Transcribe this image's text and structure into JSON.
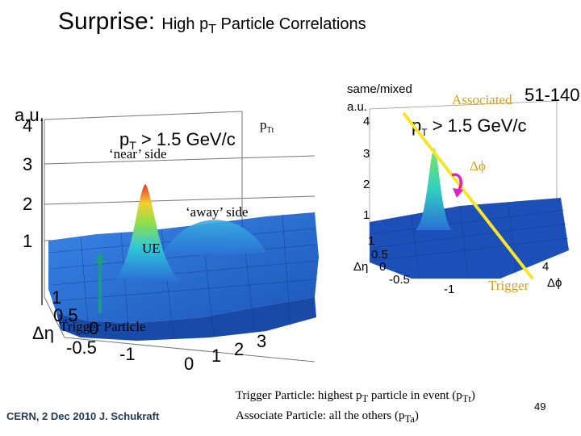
{
  "title": {
    "main": "Surprise:",
    "sub_pre": "High p",
    "sub_sub": "T",
    "sub_post": " Particle Correlations"
  },
  "left_plot": {
    "y_axis_title": "a.u.",
    "y_ticks": [
      "4",
      "3",
      "2",
      "1"
    ],
    "cut_pre": "p",
    "cut_sub": "T",
    "cut_post": " > 1.5 GeV/c",
    "pt_label_pre": "p",
    "pt_label_sub": "Tt",
    "near_side": "‘near’ side",
    "away_side": "‘away’ side",
    "ue_label": "UE",
    "eta_label": "Δη",
    "eta_ticks": [
      "1",
      "0.5",
      "0",
      "-0.5",
      "-1"
    ],
    "phi_ticks": [
      "0",
      "1",
      "2",
      "3"
    ],
    "trigger_particle": "Trigger Particle"
  },
  "right_plot": {
    "title": "same/mixed",
    "corner_number": "51-140",
    "y_axis_title": "a.u.",
    "y_ticks": [
      "4",
      "3",
      "2",
      "1"
    ],
    "cut_pre": "p",
    "cut_sub": "T",
    "cut_post": " > 1.5 GeV/c",
    "associated": "Associated",
    "delta_phi": "Δϕ",
    "trigger": "Trigger",
    "eta_label": "Δη",
    "eta_ticks": [
      "1",
      "0.5",
      "0",
      "-0.5",
      "-1"
    ],
    "phi_ticks": [
      "4"
    ],
    "phi_label": "Δϕ"
  },
  "footer": {
    "left": "CERN, 2 Dec 2010 J. Schukraft",
    "line1_pre": "Trigger Particle:   highest p",
    "line1_sub": "T",
    "line1_post": " particle in event (p",
    "line1_sub2": "Tt",
    "line1_end": ")",
    "line2_pre": "Associate Particle: all the others (p",
    "line2_sub": "Ta",
    "line2_end": ")",
    "page_number": "49"
  },
  "colors": {
    "associated_label": "#d4a017",
    "yellow_line": "#f5e62a",
    "magenta_arrow": "#e020c0",
    "teal_arrow": "#1a9a8a",
    "surface_blue": "#2a6fd6",
    "peak_red": "#e8302a"
  }
}
